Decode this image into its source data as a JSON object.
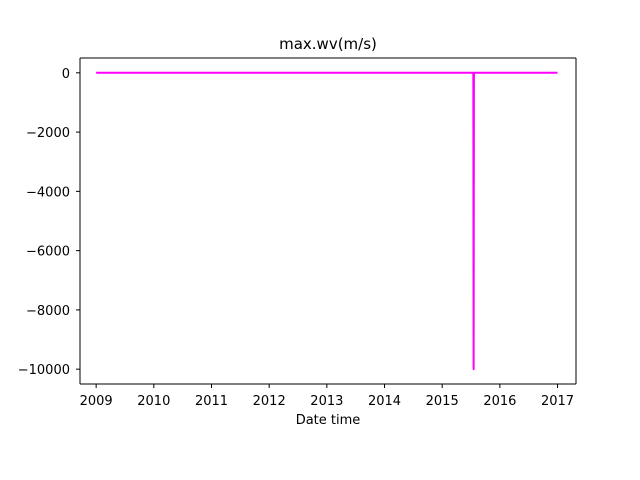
{
  "chart_data": {
    "type": "line",
    "title": "max.wv(m/s)",
    "xlabel": "Date time",
    "ylabel": "",
    "xlim": [
      2008.72,
      2017.32
    ],
    "ylim": [
      -10500,
      500
    ],
    "x_ticks": [
      2009,
      2010,
      2011,
      2012,
      2013,
      2014,
      2015,
      2016,
      2017
    ],
    "x_tick_labels": [
      "2009",
      "2010",
      "2011",
      "2012",
      "2013",
      "2014",
      "2015",
      "2016",
      "2017"
    ],
    "y_ticks": [
      0,
      -2000,
      -4000,
      -6000,
      -8000,
      -10000
    ],
    "y_tick_labels": [
      "0",
      "−2000",
      "−4000",
      "−6000",
      "−8000",
      "−10000"
    ],
    "grid": false,
    "series": [
      {
        "color": "#ff00ff",
        "x": [
          2009.0,
          2015.54,
          2015.545,
          2015.55,
          2017.0
        ],
        "y": [
          3,
          3,
          -9999,
          3,
          3
        ]
      }
    ]
  }
}
